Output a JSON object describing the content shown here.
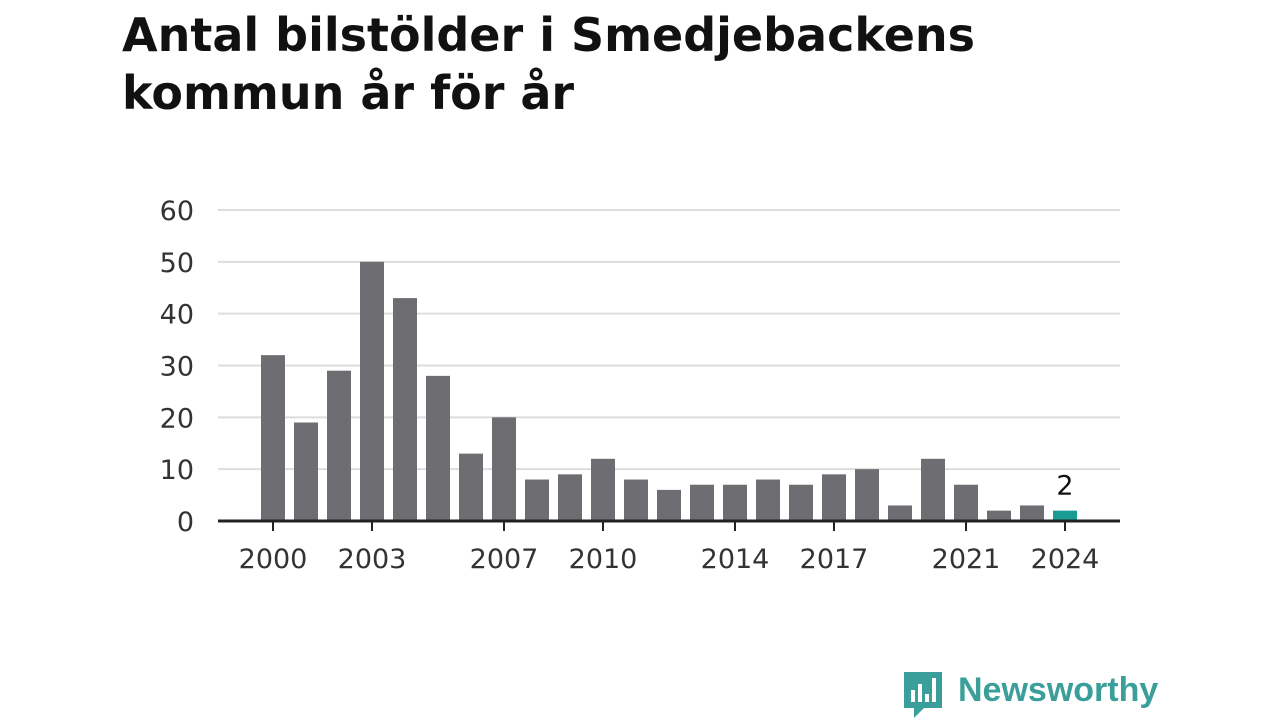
{
  "title": "Antal bilstölder i Smedjebackens kommun år för år",
  "brand": {
    "name": "Newsworthy",
    "icon": "newsworthy-logo-icon",
    "color": "#3a9e9a"
  },
  "chart_data": {
    "type": "bar",
    "title": "Antal bilstölder i Smedjebackens kommun år för år",
    "xlabel": "",
    "ylabel": "",
    "x": [
      2000,
      2001,
      2002,
      2003,
      2004,
      2005,
      2006,
      2007,
      2008,
      2009,
      2010,
      2011,
      2012,
      2013,
      2014,
      2015,
      2016,
      2017,
      2018,
      2019,
      2020,
      2021,
      2022,
      2023,
      2024
    ],
    "values": [
      32,
      19,
      29,
      50,
      43,
      28,
      13,
      20,
      8,
      9,
      12,
      8,
      6,
      7,
      7,
      8,
      7,
      9,
      10,
      3,
      12,
      7,
      2,
      3,
      2
    ],
    "ylim": [
      0,
      60
    ],
    "yticks": [
      0,
      10,
      20,
      30,
      40,
      50,
      60
    ],
    "xticks": [
      2000,
      2003,
      2007,
      2010,
      2014,
      2017,
      2021,
      2024
    ],
    "highlight": {
      "x": 2024,
      "label": "2"
    },
    "grid": true,
    "colors": {
      "bar": "#6e6d72",
      "highlight": "#199c94",
      "grid": "#dddddd",
      "axis": "#222222"
    }
  }
}
